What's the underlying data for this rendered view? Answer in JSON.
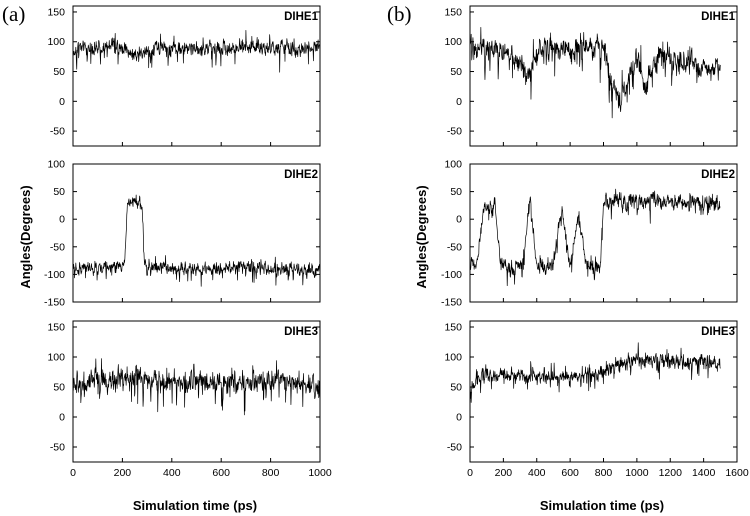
{
  "panels": [
    {
      "letter": "(a)",
      "xlabel": "Simulation time (ps)",
      "ylabel": "Angles(Degrees)",
      "x_ticks": [
        "0",
        "200",
        "400",
        "600",
        "800",
        "1000"
      ]
    },
    {
      "letter": "(b)",
      "xlabel": "Simulation time (ps)",
      "ylabel": "Angles(Degrees)",
      "x_ticks": [
        "0",
        "200",
        "400",
        "600",
        "800",
        "1000",
        "1200",
        "1400",
        "1600"
      ]
    }
  ],
  "chart_data": [
    {
      "type": "line",
      "panel": "(a)",
      "name": "DIHE1",
      "xlabel": "Simulation time (ps)",
      "ylabel": "Angles(Degrees)",
      "xlim": [
        0,
        1000
      ],
      "ylim": [
        -75,
        160
      ],
      "x_ticks": [
        0,
        200,
        400,
        600,
        800,
        1000
      ],
      "y_ticks": [
        -50,
        0,
        50,
        100,
        150
      ],
      "y_tick_labels": [
        "-50",
        "0",
        "50",
        "100",
        "150"
      ],
      "x": [
        0,
        50,
        100,
        150,
        200,
        250,
        300,
        350,
        400,
        450,
        500,
        550,
        600,
        650,
        700,
        750,
        800,
        850,
        900,
        950,
        1000
      ],
      "y": [
        85,
        92,
        88,
        95,
        90,
        78,
        85,
        90,
        88,
        92,
        86,
        90,
        92,
        88,
        93,
        90,
        88,
        92,
        85,
        90,
        95
      ],
      "noise": 14
    },
    {
      "type": "line",
      "panel": "(a)",
      "name": "DIHE2",
      "xlabel": "Simulation time (ps)",
      "ylabel": "Angles(Degrees)",
      "xlim": [
        0,
        1000
      ],
      "ylim": [
        -150,
        100
      ],
      "x_ticks": [
        0,
        200,
        400,
        600,
        800,
        1000
      ],
      "y_ticks": [
        -150,
        -100,
        -50,
        0,
        50,
        100
      ],
      "y_tick_labels": [
        "-150",
        "-100",
        "-50",
        "0",
        "50",
        "100"
      ],
      "x": [
        0,
        100,
        200,
        210,
        220,
        260,
        280,
        290,
        300,
        400,
        500,
        600,
        700,
        800,
        900,
        1000
      ],
      "y": [
        -90,
        -88,
        -85,
        -80,
        30,
        35,
        25,
        -85,
        -90,
        -88,
        -92,
        -90,
        -85,
        -90,
        -92,
        -95
      ],
      "noise": 13
    },
    {
      "type": "line",
      "panel": "(a)",
      "name": "DIHE3",
      "xlabel": "Simulation time (ps)",
      "ylabel": "Angles(Degrees)",
      "xlim": [
        0,
        1000
      ],
      "ylim": [
        -75,
        160
      ],
      "x_ticks": [
        0,
        200,
        400,
        600,
        800,
        1000
      ],
      "y_ticks": [
        -50,
        0,
        50,
        100,
        150
      ],
      "y_tick_labels": [
        "-50",
        "0",
        "50",
        "100",
        "150"
      ],
      "x": [
        0,
        50,
        100,
        150,
        200,
        250,
        300,
        350,
        400,
        450,
        500,
        550,
        600,
        650,
        700,
        750,
        800,
        850,
        900,
        950,
        1000
      ],
      "y": [
        50,
        55,
        60,
        58,
        62,
        70,
        65,
        60,
        62,
        58,
        60,
        55,
        62,
        60,
        58,
        60,
        55,
        60,
        58,
        55,
        40
      ],
      "noise": 22
    },
    {
      "type": "line",
      "panel": "(b)",
      "name": "DIHE1",
      "xlabel": "Simulation time (ps)",
      "ylabel": "Angles(Degrees)",
      "xlim": [
        0,
        1600
      ],
      "ylim": [
        -75,
        160
      ],
      "x_ticks": [
        0,
        200,
        400,
        600,
        800,
        1000,
        1200,
        1400,
        1600
      ],
      "y_ticks": [
        -50,
        0,
        50,
        100,
        150
      ],
      "y_tick_labels": [
        "-50",
        "0",
        "50",
        "100",
        "150"
      ],
      "x": [
        0,
        100,
        200,
        300,
        350,
        400,
        500,
        600,
        700,
        800,
        850,
        900,
        950,
        1000,
        1050,
        1100,
        1150,
        1200,
        1300,
        1400,
        1500
      ],
      "y": [
        90,
        88,
        85,
        60,
        40,
        90,
        88,
        85,
        88,
        90,
        30,
        0,
        40,
        80,
        20,
        60,
        85,
        70,
        65,
        55,
        60
      ],
      "noise": 22
    },
    {
      "type": "line",
      "panel": "(b)",
      "name": "DIHE2",
      "xlabel": "Simulation time (ps)",
      "ylabel": "Angles(Degrees)",
      "xlim": [
        0,
        1600
      ],
      "ylim": [
        -150,
        100
      ],
      "x_ticks": [
        0,
        200,
        400,
        600,
        800,
        1000,
        1200,
        1400,
        1600
      ],
      "y_ticks": [
        -150,
        -100,
        -50,
        0,
        50,
        100
      ],
      "y_tick_labels": [
        "-150",
        "-100",
        "-50",
        "0",
        "50",
        "100"
      ],
      "x": [
        0,
        40,
        80,
        150,
        180,
        250,
        320,
        360,
        400,
        450,
        500,
        550,
        600,
        650,
        700,
        780,
        800,
        900,
        1000,
        1100,
        1200,
        1300,
        1400,
        1500
      ],
      "y": [
        -80,
        -90,
        20,
        30,
        -80,
        -90,
        -85,
        40,
        -85,
        -90,
        -80,
        20,
        -85,
        10,
        -85,
        -90,
        30,
        35,
        30,
        35,
        30,
        32,
        30,
        25
      ],
      "noise": 15
    },
    {
      "type": "line",
      "panel": "(b)",
      "name": "DIHE3",
      "xlabel": "Simulation time (ps)",
      "ylabel": "Angles(Degrees)",
      "xlim": [
        0,
        1600
      ],
      "ylim": [
        -75,
        160
      ],
      "x_ticks": [
        0,
        200,
        400,
        600,
        800,
        1000,
        1200,
        1400,
        1600
      ],
      "y_ticks": [
        -50,
        0,
        50,
        100,
        150
      ],
      "y_tick_labels": [
        "-50",
        "0",
        "50",
        "100",
        "150"
      ],
      "x": [
        0,
        50,
        100,
        200,
        300,
        400,
        500,
        600,
        700,
        800,
        850,
        900,
        1000,
        1100,
        1200,
        1300,
        1400,
        1500
      ],
      "y": [
        40,
        65,
        70,
        72,
        68,
        70,
        68,
        65,
        70,
        72,
        85,
        90,
        92,
        95,
        92,
        90,
        95,
        85
      ],
      "noise": 14
    }
  ]
}
